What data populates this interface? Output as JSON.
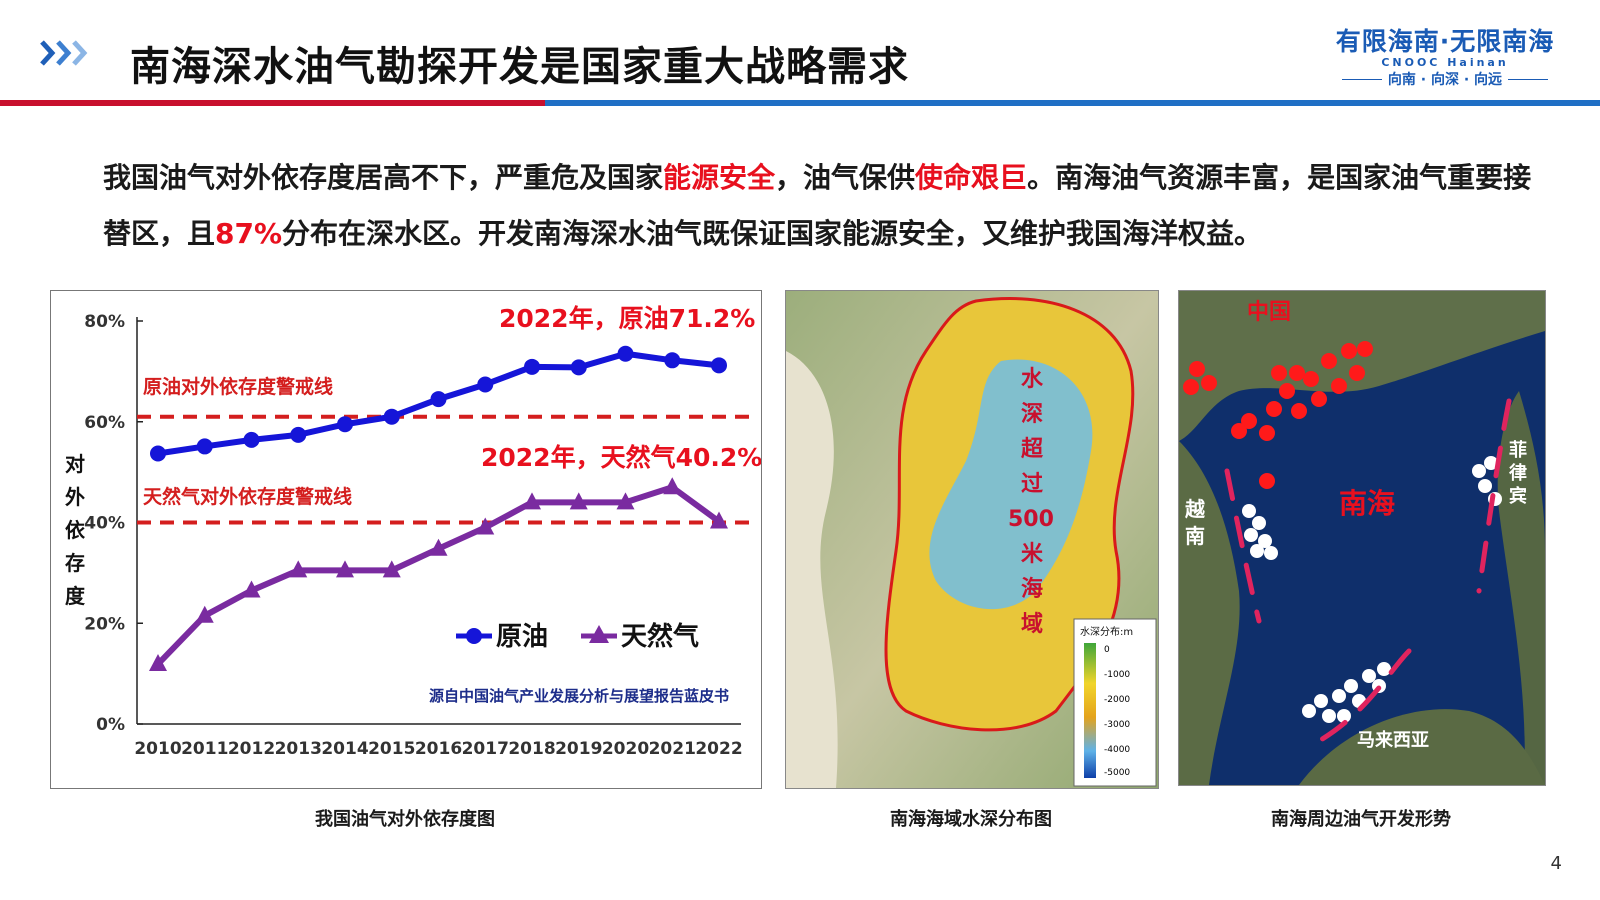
{
  "header": {
    "title": "南海深水油气勘探开发是国家重大战略需求",
    "logo_line1": "有限海南·无限南海",
    "logo_line2": "CNOOC Hainan",
    "logo_line3": "向南 · 向深 · 向远"
  },
  "body": {
    "seg1": "我国油气对外依存度居高不下，严重危及国家",
    "hl1": "能源安全",
    "seg2": "，油气保供",
    "hl2": "使命艰巨",
    "seg3": "。南海油气资源丰富，是国家油气重要接替区，且",
    "hl3": "87%",
    "seg4": "分布在深水区。开发南海深水油气既保证国家能源安全，又维护我国海洋权益。"
  },
  "captions": {
    "chart": "我国油气对外依存度图",
    "map1": "南海海域水深分布图",
    "map2": "南海周边油气开发形势"
  },
  "map1": {
    "label_lines": [
      "水",
      "深",
      "超",
      "过",
      "500",
      "米",
      "海",
      "域"
    ],
    "legend_title": "水深分布:m",
    "legend_ticks": [
      "0",
      "-1000",
      "-2000",
      "-3000",
      "-4000",
      "-5000"
    ]
  },
  "map2": {
    "china": "中国",
    "nanhai": "南海",
    "vietnam": [
      "越",
      "南"
    ],
    "philippines": [
      "菲",
      "律",
      "宾"
    ],
    "malaysia": "马来西亚"
  },
  "page_number": "4",
  "chart_data": {
    "type": "line",
    "ylabel_chars": [
      "对",
      "外",
      "依",
      "存",
      "度"
    ],
    "x": [
      "2010",
      "2011",
      "2012",
      "2013",
      "2014",
      "2015",
      "2016",
      "2017",
      "2018",
      "2019",
      "2020",
      "2021",
      "2022"
    ],
    "ylim": [
      0,
      80
    ],
    "yticks": [
      "0%",
      "20%",
      "40%",
      "60%",
      "80%"
    ],
    "series": [
      {
        "name": "原油",
        "color": "#1515d8",
        "marker": "circle",
        "values": [
          53.7,
          55.1,
          56.4,
          57.4,
          59.5,
          61.0,
          64.5,
          67.4,
          70.9,
          70.8,
          73.5,
          72.2,
          71.2
        ]
      },
      {
        "name": "天然气",
        "color": "#7a2ba0",
        "marker": "triangle",
        "values": [
          11.9,
          21.5,
          26.5,
          30.5,
          30.5,
          30.5,
          34.8,
          39.0,
          44.0,
          44.0,
          44.0,
          47.0,
          40.2
        ]
      }
    ],
    "thresholds": [
      {
        "value": 61,
        "label": "原油对外依存度警戒线",
        "color": "#d41e1e"
      },
      {
        "value": 40,
        "label": "天然气对外依存度警戒线",
        "color": "#d41e1e"
      }
    ],
    "annotations": [
      "2022年，原油71.2%",
      "2022年，天然气40.2%"
    ],
    "source": "源自中国油气产业发展分析与展望报告蓝皮书",
    "legend_position": "bottom-right",
    "grid": false
  }
}
